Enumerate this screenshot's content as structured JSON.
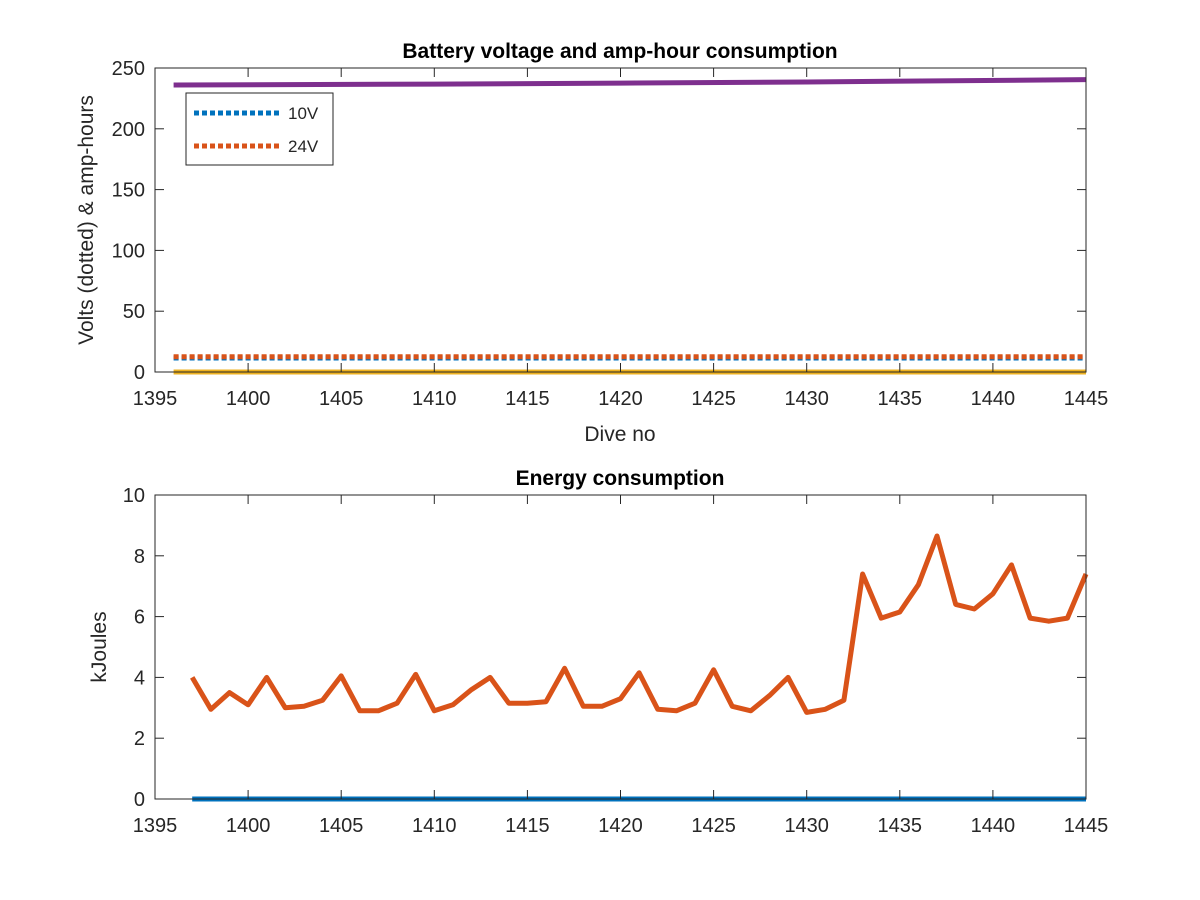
{
  "chart_data": [
    {
      "type": "line",
      "title": "Battery voltage and amp-hour consumption",
      "xlabel": "Dive no",
      "ylabel": "Volts (dotted) & amp-hours",
      "xlim": [
        1395,
        1445
      ],
      "ylim": [
        0,
        250
      ],
      "xticks": [
        1395,
        1400,
        1405,
        1410,
        1415,
        1420,
        1425,
        1430,
        1435,
        1440,
        1445
      ],
      "yticks": [
        0,
        50,
        100,
        150,
        200,
        250
      ],
      "grid": false,
      "legend_position": "top-left",
      "series": [
        {
          "name": "10V",
          "style": "dotted",
          "color": "#0072BD",
          "x": [
            1396,
            1445
          ],
          "y": [
            11.5,
            11.5
          ]
        },
        {
          "name": "24V",
          "style": "dotted",
          "color": "#D95319",
          "x": [
            1396,
            1445
          ],
          "y": [
            12.5,
            12.5
          ]
        },
        {
          "style": "solid",
          "color": "#EDB120",
          "x": [
            1396,
            1445
          ],
          "y": [
            0,
            0
          ]
        },
        {
          "style": "solid",
          "color": "#7E2F8E",
          "x": [
            1396,
            1410,
            1420,
            1430,
            1445
          ],
          "y": [
            236,
            236.8,
            237.6,
            238.5,
            240.5
          ]
        }
      ]
    },
    {
      "type": "line",
      "title": "Energy consumption",
      "xlabel": "",
      "ylabel": "kJoules",
      "xlim": [
        1395,
        1445
      ],
      "ylim": [
        0,
        10
      ],
      "xticks": [
        1395,
        1400,
        1405,
        1410,
        1415,
        1420,
        1425,
        1430,
        1435,
        1440,
        1445
      ],
      "yticks": [
        0,
        2,
        4,
        6,
        8,
        10
      ],
      "grid": false,
      "series": [
        {
          "style": "solid",
          "color": "#0072BD",
          "x": [
            1397,
            1445
          ],
          "y": [
            0,
            0
          ]
        },
        {
          "style": "solid",
          "color": "#D95319",
          "x": [
            1397,
            1398,
            1399,
            1400,
            1401,
            1402,
            1403,
            1404,
            1405,
            1406,
            1407,
            1408,
            1409,
            1410,
            1411,
            1412,
            1413,
            1414,
            1415,
            1416,
            1417,
            1418,
            1419,
            1420,
            1421,
            1422,
            1423,
            1424,
            1425,
            1426,
            1427,
            1428,
            1429,
            1430,
            1431,
            1432,
            1433,
            1434,
            1435,
            1436,
            1437,
            1438,
            1439,
            1440,
            1441,
            1442,
            1443,
            1444,
            1445
          ],
          "y": [
            4.0,
            2.95,
            3.5,
            3.1,
            4.0,
            3.0,
            3.05,
            3.25,
            4.05,
            2.9,
            2.9,
            3.15,
            4.1,
            2.9,
            3.1,
            3.6,
            4.0,
            3.15,
            3.15,
            3.2,
            4.3,
            3.05,
            3.05,
            3.3,
            4.15,
            2.95,
            2.9,
            3.15,
            4.25,
            3.05,
            2.9,
            3.4,
            4.0,
            2.85,
            2.95,
            3.25,
            7.4,
            5.95,
            6.15,
            7.05,
            8.65,
            6.4,
            6.25,
            6.75,
            7.7,
            5.95,
            5.85,
            5.95,
            7.4
          ]
        }
      ]
    }
  ]
}
